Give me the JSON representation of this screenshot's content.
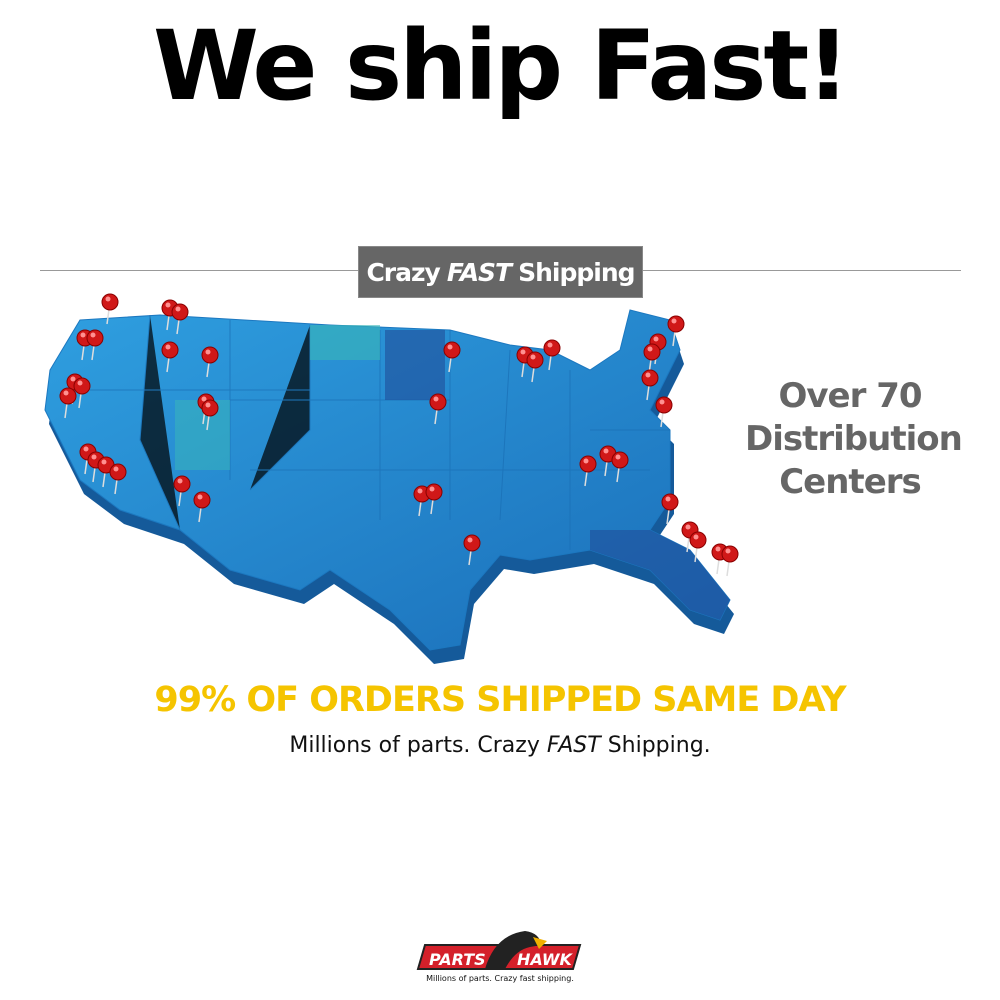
{
  "headline": "We ship Fast!",
  "banner": {
    "prefix": "Crazy",
    "emphasis": "FAST",
    "suffix": "Shipping"
  },
  "side_text": [
    "Over 70",
    "Distribution",
    "Centers"
  ],
  "yellow_line": "99% OF ORDERS SHIPPED SAME DAY",
  "subline": {
    "prefix": "Millions of parts. Crazy",
    "emphasis": "FAST",
    "suffix": "Shipping."
  },
  "logo": {
    "left": "PARTS",
    "right": "HAWK",
    "tagline": "Millions of parts. Crazy fast shipping."
  },
  "colors": {
    "pin": "#d01818",
    "map_blue": "#2a9ad8",
    "yellow": "#f5c400",
    "banner": "#666666",
    "logo_red": "#d4202a"
  }
}
